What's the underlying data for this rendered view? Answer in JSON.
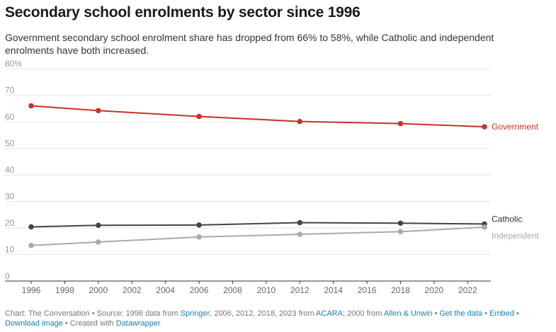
{
  "title": "Secondary school enrolments by sector since 1996",
  "subtitle": "Government secondary school enrolment share has dropped from 66% to 58%, while Catholic and independent enrolments have both increased.",
  "chart_data": {
    "type": "line",
    "x": [
      1996,
      2000,
      2006,
      2012,
      2018,
      2023
    ],
    "series": [
      {
        "name": "Government",
        "values": [
          66,
          64.2,
          62,
          60.1,
          59.3,
          58.1
        ],
        "color": "#c8322a"
      },
      {
        "name": "Catholic",
        "values": [
          20.4,
          21,
          21.1,
          22,
          21.8,
          21.5
        ],
        "color": "#444444"
      },
      {
        "name": "Independent",
        "values": [
          13.4,
          14.7,
          16.6,
          17.6,
          18.6,
          20.3
        ],
        "color": "#a9a9b1"
      }
    ],
    "xlim": [
      1996,
      2023
    ],
    "ylim": [
      0,
      80
    ],
    "x_ticks": [
      "1996",
      "1998",
      "2000",
      "2002",
      "2004",
      "2006",
      "2008",
      "2010",
      "2012",
      "2014",
      "2016",
      "2018",
      "2020",
      "2022"
    ],
    "y_ticks": [
      "0",
      "10",
      "20",
      "30",
      "40",
      "50",
      "60",
      "70",
      "80%"
    ],
    "grid": true,
    "legend": "direct labels at line ends"
  },
  "footer": {
    "prefix": "Chart: The Conversation • Source: 1996 data from ",
    "springer": "Springer",
    "mid1": "; 2006, 2012, 2018, 2023 from ",
    "acara": "ACARA",
    "mid2": "; 2000 from ",
    "allen": "Allen & Unwin",
    "sep1": " • ",
    "get_data": "Get the data",
    "sep2": " • ",
    "embed": "Embed",
    "sep3": " • ",
    "download": "Download image",
    "created": " • Created with ",
    "datawrapper": "Datawrapper"
  }
}
